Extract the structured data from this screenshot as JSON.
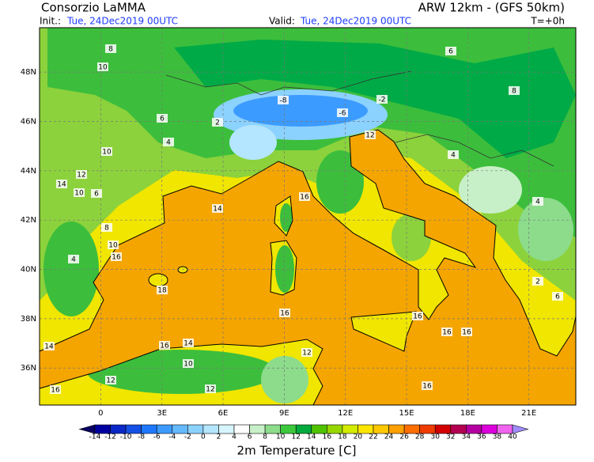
{
  "header": {
    "title": "Consorzio LaMMA",
    "model": "ARW 12km - (GFS 50km)",
    "init_label": "Init.:",
    "init_value": "Tue, 24Dec2019 00UTC",
    "valid_label": "Valid:",
    "valid_value": "Tue, 24Dec2019 00UTC",
    "lead": "T=+0h"
  },
  "map": {
    "lonlim": [
      -3,
      23.3
    ],
    "latlim": [
      34.5,
      49.8
    ],
    "lat_ticks": [
      {
        "value": 48,
        "label": "48N"
      },
      {
        "value": 46,
        "label": "46N"
      },
      {
        "value": 44,
        "label": "44N"
      },
      {
        "value": 42,
        "label": "42N"
      },
      {
        "value": 40,
        "label": "40N"
      },
      {
        "value": 38,
        "label": "38N"
      },
      {
        "value": 36,
        "label": "36N"
      }
    ],
    "lon_ticks": [
      0,
      {
        "value": 3,
        "label": "3E"
      },
      {
        "value": 6,
        "label": "6E"
      },
      {
        "value": 9,
        "label": "9E"
      },
      {
        "value": 12,
        "label": "12E"
      },
      {
        "value": 15,
        "label": "15E"
      },
      {
        "value": 18,
        "label": "18E"
      },
      {
        "value": 21,
        "label": "21E"
      }
    ],
    "contour_labels": [
      8,
      10,
      6,
      4,
      10,
      12,
      14,
      10,
      6,
      8,
      10,
      16,
      4,
      14,
      16,
      16,
      12,
      -2,
      -8,
      -6,
      2,
      4,
      8,
      6,
      14,
      16,
      12,
      12,
      16,
      16,
      16,
      16,
      10,
      12,
      14,
      16,
      18,
      6,
      2,
      4
    ]
  },
  "colorbar": {
    "ticks": [
      -14,
      -12,
      -10,
      -8,
      -6,
      -4,
      -2,
      0,
      2,
      4,
      6,
      8,
      10,
      12,
      14,
      16,
      18,
      20,
      22,
      24,
      26,
      28,
      30,
      32,
      34,
      36,
      38,
      40
    ],
    "colors": [
      "#0a0064",
      "#0000a0",
      "#0a28c8",
      "#1450e6",
      "#1e78ff",
      "#3c9bff",
      "#64b9ff",
      "#8cd2ff",
      "#b4e6ff",
      "#d7f5ff",
      "#ffffff",
      "#c8f0c8",
      "#8cdc8c",
      "#3cc83c",
      "#00aa3c",
      "#50c300",
      "#96d700",
      "#d2eb00",
      "#ffe600",
      "#ffc800",
      "#ffa000",
      "#ff6e00",
      "#f03c00",
      "#d20000",
      "#b40050",
      "#b400a0",
      "#dc00dc",
      "#f064f0",
      "#a08cff"
    ],
    "label": "2m Temperature [C]"
  }
}
